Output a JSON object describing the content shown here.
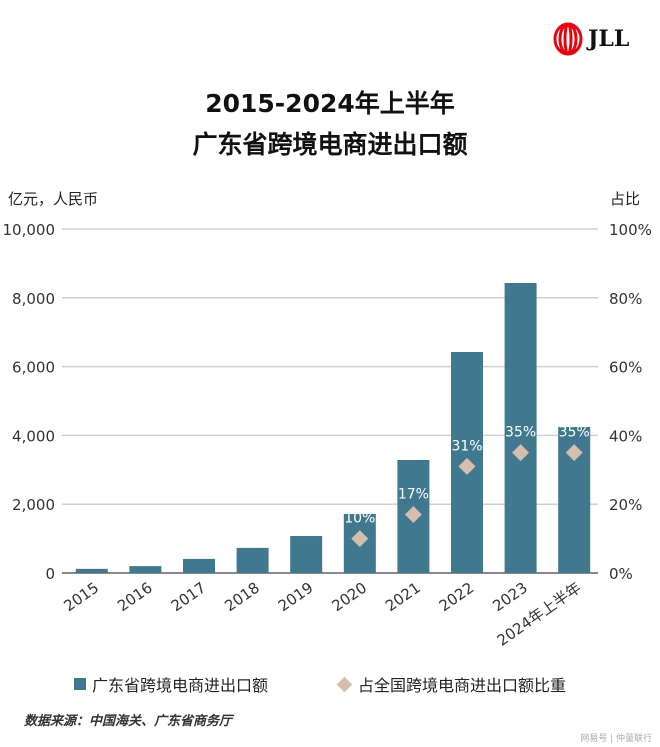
{
  "logo": {
    "text": "JLL"
  },
  "title_line1": "2015-2024年上半年",
  "title_line2": "广东省跨境电商进出口额",
  "watermark": "网易号 | 仲量联行",
  "source": "数据来源：中国海关、广东省商务厅",
  "chart_data": {
    "type": "bar",
    "categories": [
      "2015",
      "2016",
      "2017",
      "2018",
      "2019",
      "2020",
      "2021",
      "2022",
      "2023",
      "2024年上半年"
    ],
    "series": [
      {
        "name": "广东省跨境电商进出口额",
        "type": "bar",
        "axis": "left",
        "values": [
          120,
          200,
          410,
          730,
          1075,
          1715,
          3285,
          6425,
          8430,
          4245
        ],
        "color": "#3f788f"
      },
      {
        "name": "占全国跨境电商进出口额比重",
        "type": "scatter",
        "marker": "diamond",
        "axis": "right",
        "values": [
          null,
          null,
          null,
          null,
          null,
          10,
          17,
          31,
          35,
          35
        ],
        "labels": [
          "",
          "",
          "",
          "",
          "",
          "10%",
          "17%",
          "31%",
          "35%",
          "35%"
        ],
        "color": "#d4bfae"
      }
    ],
    "ylabel_left": "亿元，人民币",
    "ylabel_right": "占比",
    "ylim_left": [
      0,
      10000
    ],
    "ylim_right": [
      0,
      100
    ],
    "yticks_left": [
      "0",
      "2,000",
      "4,000",
      "6,000",
      "8,000",
      "10,000"
    ],
    "yticks_right": [
      "0%",
      "20%",
      "40%",
      "60%",
      "80%",
      "100%"
    ],
    "grid": true,
    "legend_position": "bottom"
  }
}
